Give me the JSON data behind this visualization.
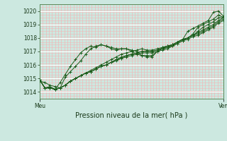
{
  "background_color": "#cce8e0",
  "plot_bg_color": "#cce8e0",
  "grid_color_white": "#ffffff",
  "grid_color_pink": "#f0b8b8",
  "line_color": "#1a5c1a",
  "marker": "+",
  "xlabel": "Pression niveau de la mer( hPa )",
  "xtick_labels": [
    "Meu",
    "Ven"
  ],
  "ylim": [
    1013.5,
    1020.5
  ],
  "yticks": [
    1014,
    1015,
    1016,
    1017,
    1018,
    1019,
    1020
  ],
  "n_vertical_lines": 60,
  "n_points": 37,
  "series": [
    [
      1014.8,
      1014.7,
      1014.5,
      1014.4,
      1014.3,
      1015.1,
      1015.5,
      1015.9,
      1016.3,
      1016.8,
      1017.2,
      1017.4,
      1017.5,
      1017.4,
      1017.2,
      1017.1,
      1017.2,
      1017.2,
      1017.1,
      1017.0,
      1016.7,
      1016.7,
      1016.7,
      1017.0,
      1017.2,
      1017.4,
      1017.5,
      1017.7,
      1017.9,
      1018.5,
      1018.7,
      1018.9,
      1019.1,
      1019.3,
      1019.9,
      1020.0,
      1019.6
    ],
    [
      1014.9,
      1014.3,
      1014.4,
      1014.2,
      1014.7,
      1015.3,
      1015.9,
      1016.4,
      1016.9,
      1017.2,
      1017.4,
      1017.3,
      1017.5,
      1017.4,
      1017.3,
      1017.2,
      1017.2,
      1017.2,
      1017.0,
      1016.8,
      1016.7,
      1016.6,
      1016.6,
      1017.0,
      1017.3,
      1017.4,
      1017.5,
      1017.7,
      1017.9,
      1018.0,
      1018.3,
      1018.8,
      1019.0,
      1019.2,
      1019.4,
      1019.7,
      1019.5
    ],
    [
      1014.9,
      1014.3,
      1014.3,
      1014.2,
      1014.3,
      1014.5,
      1014.8,
      1015.0,
      1015.2,
      1015.4,
      1015.6,
      1015.8,
      1016.0,
      1016.2,
      1016.4,
      1016.6,
      1016.8,
      1016.9,
      1017.0,
      1017.1,
      1017.2,
      1017.1,
      1017.1,
      1017.2,
      1017.3,
      1017.4,
      1017.5,
      1017.7,
      1017.9,
      1018.0,
      1018.2,
      1018.5,
      1018.8,
      1019.0,
      1019.2,
      1019.5,
      1019.5
    ],
    [
      1014.9,
      1014.3,
      1014.3,
      1014.2,
      1014.3,
      1014.5,
      1014.8,
      1015.0,
      1015.2,
      1015.4,
      1015.5,
      1015.7,
      1015.9,
      1016.0,
      1016.2,
      1016.4,
      1016.6,
      1016.7,
      1016.8,
      1016.9,
      1017.0,
      1017.0,
      1017.0,
      1017.1,
      1017.2,
      1017.3,
      1017.5,
      1017.7,
      1017.9,
      1018.0,
      1018.2,
      1018.4,
      1018.6,
      1018.8,
      1019.0,
      1019.3,
      1019.5
    ],
    [
      1014.9,
      1014.3,
      1014.3,
      1014.2,
      1014.3,
      1014.5,
      1014.8,
      1015.0,
      1015.2,
      1015.4,
      1015.5,
      1015.7,
      1015.9,
      1016.0,
      1016.2,
      1016.4,
      1016.5,
      1016.7,
      1016.8,
      1016.9,
      1017.0,
      1017.0,
      1017.0,
      1017.1,
      1017.2,
      1017.3,
      1017.4,
      1017.6,
      1017.8,
      1018.0,
      1018.2,
      1018.3,
      1018.5,
      1018.7,
      1018.9,
      1019.2,
      1019.4
    ],
    [
      1014.9,
      1014.3,
      1014.3,
      1014.2,
      1014.3,
      1014.5,
      1014.8,
      1015.0,
      1015.2,
      1015.4,
      1015.5,
      1015.7,
      1015.9,
      1016.0,
      1016.2,
      1016.3,
      1016.5,
      1016.6,
      1016.7,
      1016.8,
      1016.9,
      1016.9,
      1016.9,
      1017.0,
      1017.1,
      1017.2,
      1017.4,
      1017.6,
      1017.8,
      1017.9,
      1018.1,
      1018.2,
      1018.4,
      1018.6,
      1018.8,
      1019.1,
      1019.3
    ]
  ]
}
